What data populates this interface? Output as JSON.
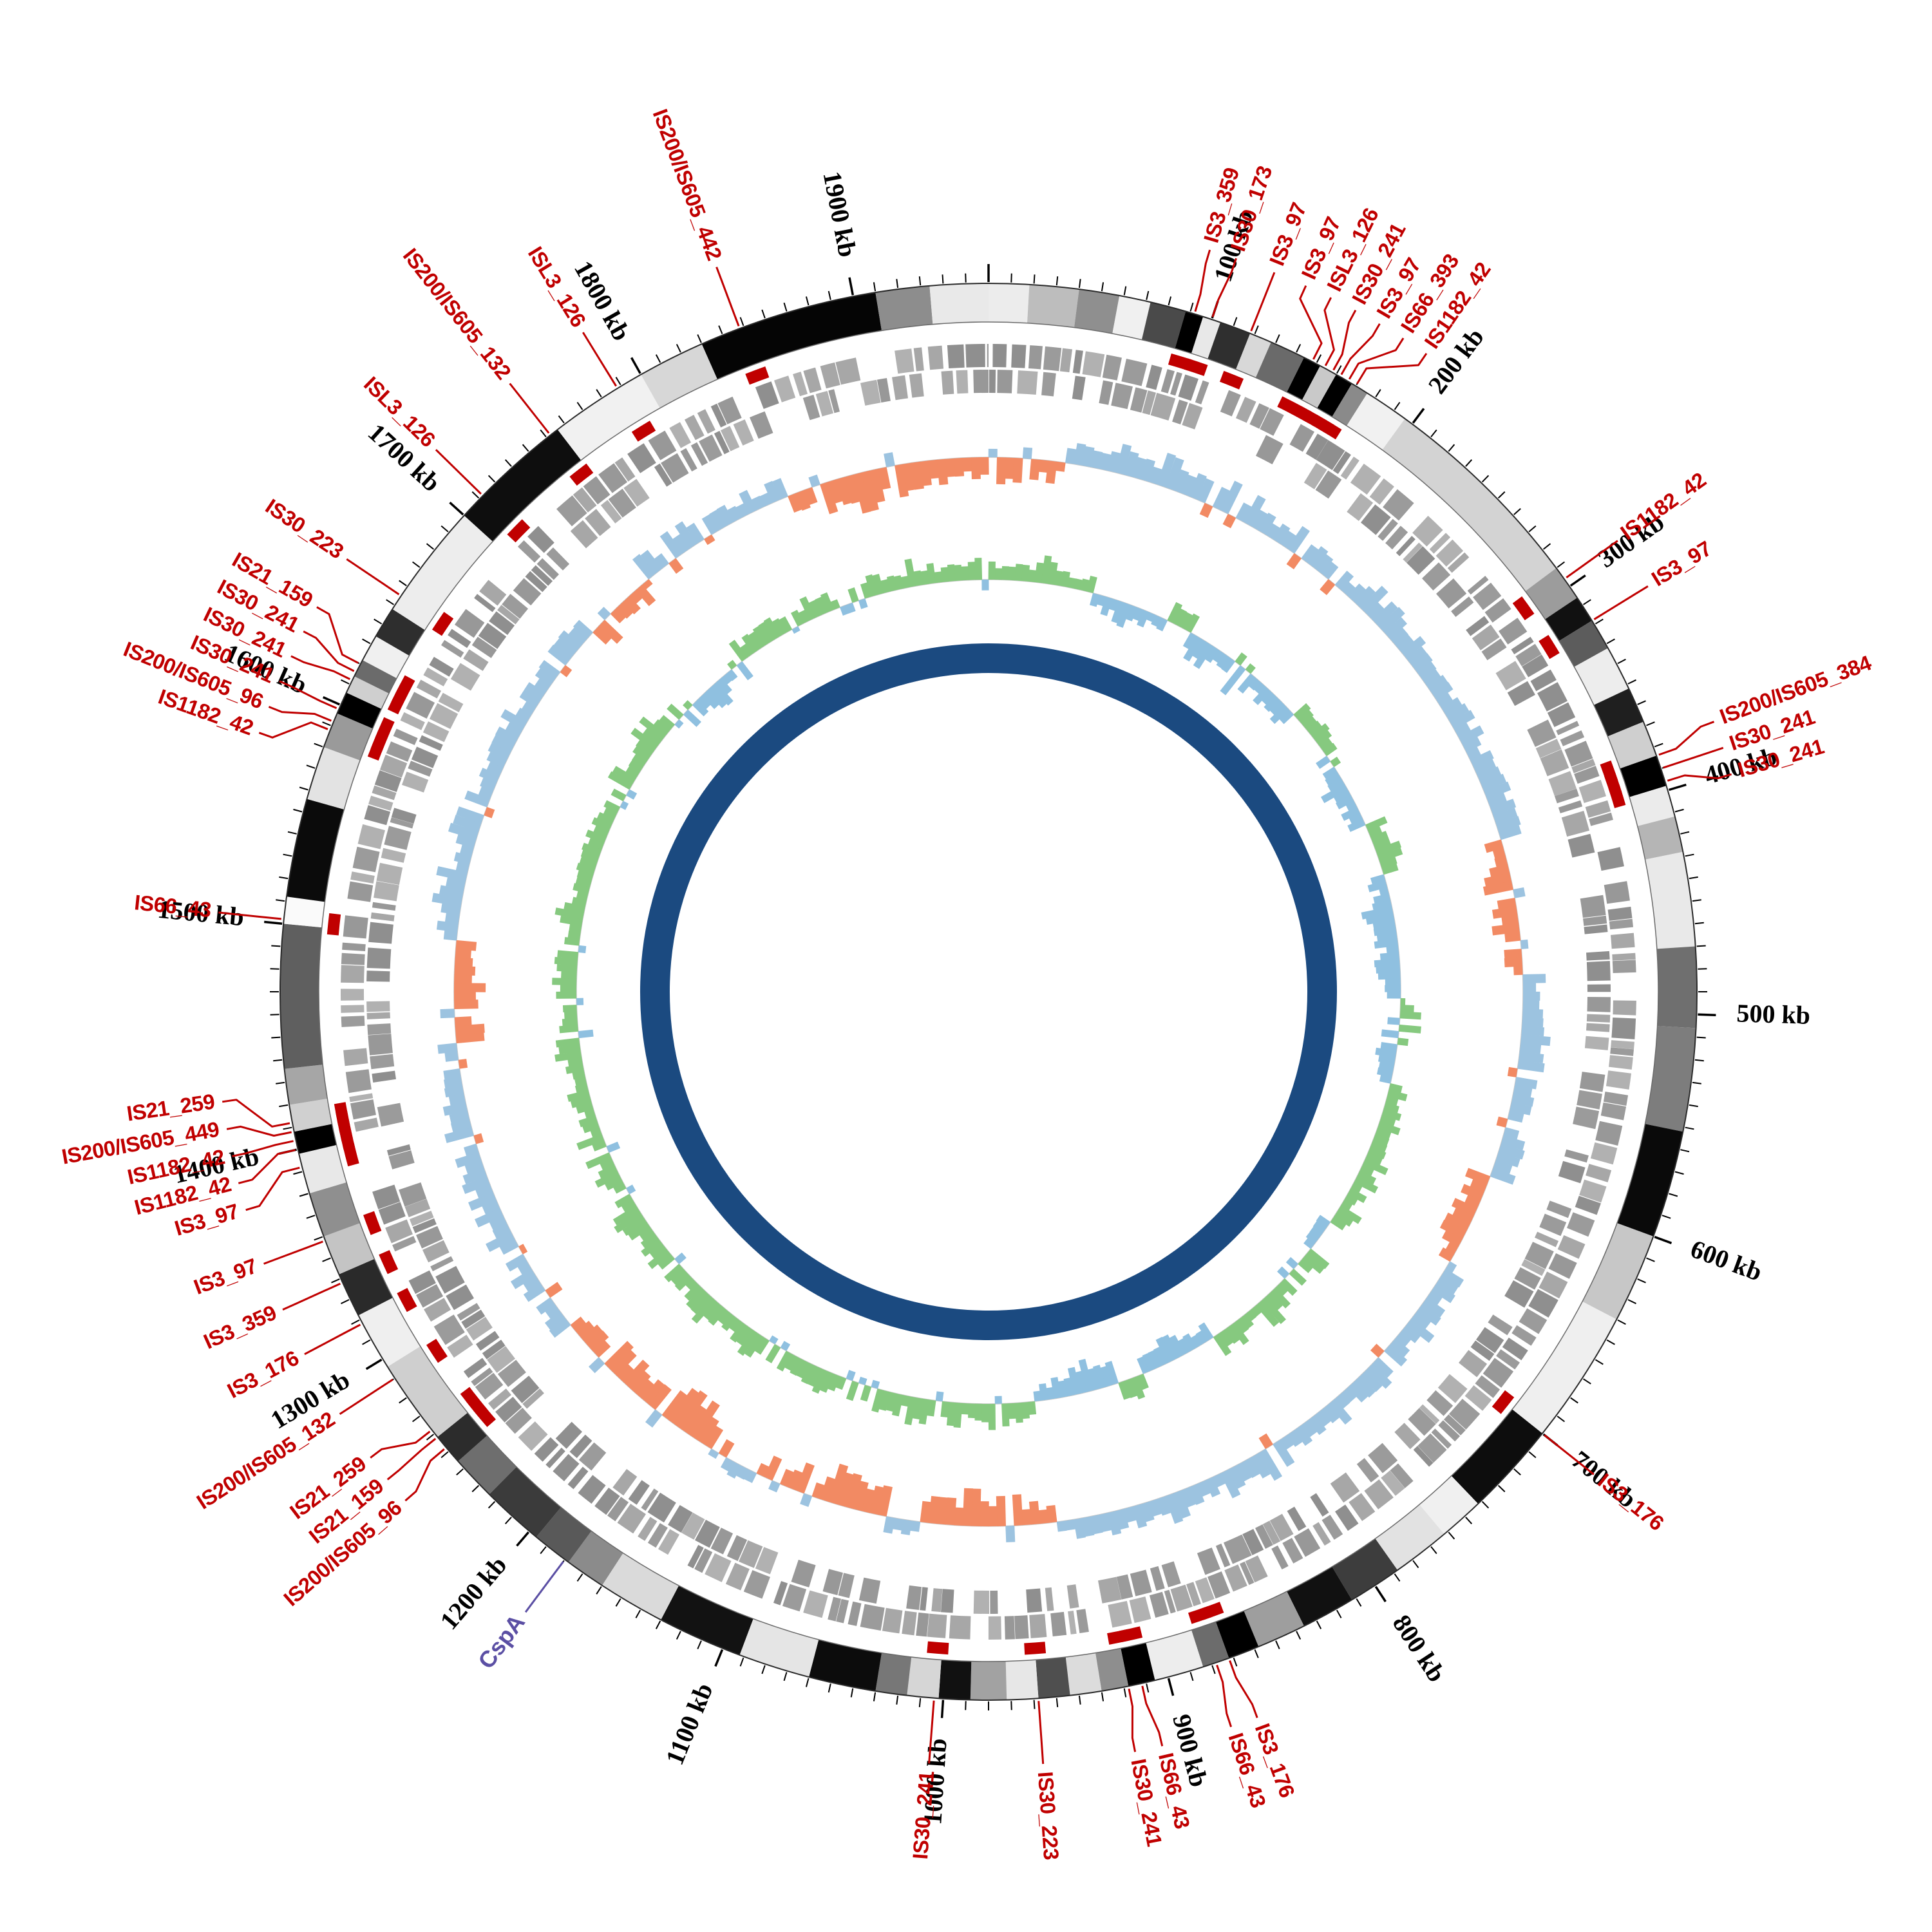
{
  "chart_data": {
    "type": "circular_genome_map",
    "title": "",
    "genome_length_kb": 1960,
    "background_color": "#ffffff",
    "center_ring_color": "#1b4a80",
    "is_annotation_color": "#c00000",
    "scale": {
      "minor_tick_interval_kb": 10,
      "major_tick_interval_kb": 100,
      "major_tick_labels": [
        "100 kb",
        "200 kb",
        "300 kb",
        "400 kb",
        "500 kb",
        "600 kb",
        "700 kb",
        "800 kb",
        "900 kb",
        "1000 kb",
        "1100 kb",
        "1200 kb",
        "1300 kb",
        "1400 kb",
        "1500 kb",
        "1600 kb",
        "1700 kb",
        "1800 kb",
        "1900 kb"
      ]
    },
    "karyotype_segments": [
      [
        0,
        18,
        "#ececec"
      ],
      [
        18,
        40,
        "#bdbdbd"
      ],
      [
        40,
        58,
        "#8f8f8f"
      ],
      [
        58,
        72,
        "#f0f0f0"
      ],
      [
        72,
        88,
        "#4a4a4a"
      ],
      [
        88,
        96,
        "#000000"
      ],
      [
        96,
        104,
        "#e8e8e8"
      ],
      [
        104,
        118,
        "#2f2f2f"
      ],
      [
        118,
        128,
        "#d8d8d8"
      ],
      [
        128,
        144,
        "#6a6a6a"
      ],
      [
        144,
        152,
        "#000000"
      ],
      [
        152,
        160,
        "#c9c9c9"
      ],
      [
        160,
        168,
        "#000000"
      ],
      [
        168,
        176,
        "#8a8a8a"
      ],
      [
        176,
        196,
        "#f1f1f1"
      ],
      [
        196,
        290,
        "#d3d3d3"
      ],
      [
        290,
        306,
        "#9c9c9c"
      ],
      [
        306,
        318,
        "#111111"
      ],
      [
        318,
        332,
        "#5c5c5c"
      ],
      [
        332,
        352,
        "#ededed"
      ],
      [
        352,
        368,
        "#1f1f1f"
      ],
      [
        368,
        384,
        "#cfcfcf"
      ],
      [
        384,
        398,
        "#000000"
      ],
      [
        398,
        412,
        "#ebebeb"
      ],
      [
        412,
        428,
        "#b5b5b5"
      ],
      [
        428,
        470,
        "#e9e9e9"
      ],
      [
        470,
        506,
        "#6f6f6f"
      ],
      [
        506,
        552,
        "#7d7d7d"
      ],
      [
        552,
        600,
        "#0a0a0a"
      ],
      [
        600,
        640,
        "#c7c7c7"
      ],
      [
        640,
        700,
        "#efefef"
      ],
      [
        700,
        742,
        "#0d0d0d"
      ],
      [
        742,
        762,
        "#f0f0f0"
      ],
      [
        762,
        788,
        "#e2e2e2"
      ],
      [
        788,
        812,
        "#3d3d3d"
      ],
      [
        812,
        836,
        "#111111"
      ],
      [
        836,
        858,
        "#9e9e9e"
      ],
      [
        858,
        872,
        "#000000"
      ],
      [
        872,
        884,
        "#6c6c6c"
      ],
      [
        884,
        906,
        "#ededed"
      ],
      [
        906,
        918,
        "#000000"
      ],
      [
        918,
        930,
        "#8e8e8e"
      ],
      [
        930,
        944,
        "#dcdcdc"
      ],
      [
        944,
        958,
        "#4f4f4f"
      ],
      [
        958,
        972,
        "#e7e7e7"
      ],
      [
        972,
        988,
        "#a2a2a2"
      ],
      [
        988,
        1002,
        "#111111"
      ],
      [
        1002,
        1016,
        "#d6d6d6"
      ],
      [
        1016,
        1030,
        "#777777"
      ],
      [
        1030,
        1060,
        "#0c0c0c"
      ],
      [
        1060,
        1092,
        "#e5e5e5"
      ],
      [
        1092,
        1130,
        "#121212"
      ],
      [
        1130,
        1160,
        "#dadada"
      ],
      [
        1160,
        1178,
        "#8b8b8b"
      ],
      [
        1178,
        1196,
        "#595959"
      ],
      [
        1196,
        1224,
        "#3b3b3b"
      ],
      [
        1224,
        1244,
        "#6e6e6e"
      ],
      [
        1244,
        1258,
        "#2c2c2c"
      ],
      [
        1258,
        1296,
        "#cfcfcf"
      ],
      [
        1296,
        1322,
        "#efefef"
      ],
      [
        1322,
        1342,
        "#2a2a2a"
      ],
      [
        1342,
        1360,
        "#c4c4c4"
      ],
      [
        1360,
        1380,
        "#8f8f8f"
      ],
      [
        1380,
        1398,
        "#e8e8e8"
      ],
      [
        1398,
        1408,
        "#000000"
      ],
      [
        1408,
        1420,
        "#d0d0d0"
      ],
      [
        1420,
        1436,
        "#a6a6a6"
      ],
      [
        1436,
        1500,
        "#5f5f5f"
      ],
      [
        1500,
        1512,
        "#fafafa"
      ],
      [
        1512,
        1556,
        "#0b0b0b"
      ],
      [
        1556,
        1580,
        "#e3e3e3"
      ],
      [
        1580,
        1596,
        "#9a9a9a"
      ],
      [
        1596,
        1606,
        "#000000"
      ],
      [
        1606,
        1614,
        "#cfcfcf"
      ],
      [
        1614,
        1622,
        "#6b6b6b"
      ],
      [
        1622,
        1634,
        "#f0f0f0"
      ],
      [
        1634,
        1648,
        "#2e2e2e"
      ],
      [
        1648,
        1700,
        "#ededed"
      ],
      [
        1700,
        1756,
        "#0e0e0e"
      ],
      [
        1756,
        1800,
        "#f1f1f1"
      ],
      [
        1800,
        1830,
        "#d7d7d7"
      ],
      [
        1830,
        1910,
        "#050505"
      ],
      [
        1910,
        1934,
        "#8d8d8d"
      ],
      [
        1934,
        1960,
        "#e9e9e9"
      ]
    ],
    "gene_track": {
      "color_palette": [
        "#9b9b9b",
        "#a7a7a7",
        "#8f8f8f",
        "#b1b1b1",
        "#989898"
      ],
      "seed": 11
    },
    "gc_content_track": {
      "positive_color": "#9cc3e0",
      "negative_color": "#f28a63",
      "interval_kb": 20,
      "seed": 23,
      "values": [
        -0.55,
        -0.4,
        0.35,
        0.5,
        0.42,
        0.58,
        0.46,
        0.62,
        0.4,
        0.52,
        0.44,
        0.36,
        0.55,
        0.48,
        0.6,
        0.42,
        0.5,
        0.38,
        0.56,
        0.44,
        -0.35,
        -0.58,
        -0.48,
        -0.3,
        0.4,
        0.52,
        0.44,
        0.36,
        0.5,
        0.42,
        -0.45,
        -0.55,
        -0.35,
        0.46,
        0.54,
        0.4,
        0.58,
        0.44,
        0.5,
        0.38,
        0.54,
        0.46,
        0.36,
        0.52,
        0.42,
        0.48,
        0.34,
        -0.42,
        -0.56,
        -0.62,
        -0.46,
        0.32,
        -0.5,
        -0.66,
        -0.52,
        -0.4,
        0.34,
        -0.46,
        -0.7,
        -0.6,
        -0.52,
        -0.58,
        -0.42,
        0.4,
        0.52,
        0.36,
        0.46,
        0.56,
        0.42,
        0.5,
        0.44,
        0.36,
        -0.5,
        -0.62,
        -0.42,
        0.44,
        0.52,
        0.36,
        0.56,
        0.42,
        0.5,
        0.46,
        0.32,
        0.5,
        0.4,
        -0.46,
        -0.36,
        0.42,
        0.46,
        0.32,
        0.4,
        0.36,
        -0.52,
        -0.66,
        -0.72,
        -0.62,
        -0.56,
        -0.46
      ]
    },
    "gc_skew_track": {
      "positive_color": "#86c97f",
      "negative_color": "#8fc0e0",
      "interval_kb": 20,
      "seed": 37,
      "values": [
        0.45,
        0.38,
        0.52,
        0.3,
        -0.35,
        -0.48,
        -0.3,
        0.42,
        -0.55,
        -0.4,
        -0.62,
        -0.35,
        -0.5,
        0.36,
        0.48,
        -0.42,
        -0.58,
        -0.36,
        0.4,
        0.52,
        -0.34,
        -0.6,
        -0.44,
        -0.52,
        -0.38,
        0.46,
        -0.4,
        -0.3,
        0.44,
        0.56,
        0.38,
        0.5,
        0.34,
        0.46,
        -0.36,
        0.52,
        0.4,
        0.58,
        0.36,
        0.48,
        -0.38,
        -0.52,
        -0.34,
        0.42,
        -0.46,
        -0.6,
        -0.42,
        0.38,
        0.5,
        0.34,
        0.46,
        0.56,
        0.4,
        0.52,
        0.36,
        0.48,
        0.42,
        0.34,
        0.54,
        0.44,
        0.58,
        0.38,
        0.5,
        0.42,
        0.56,
        0.34,
        0.46,
        0.52,
        0.38,
        0.48,
        0.4,
        0.54,
        0.36,
        0.5,
        0.44,
        0.34,
        0.52,
        0.42,
        0.56,
        0.38,
        0.46,
        0.5,
        0.36,
        0.54,
        0.4,
        -0.36,
        -0.5,
        -0.34,
        0.44,
        0.52,
        0.38,
        0.48,
        0.34,
        0.5,
        0.42,
        0.54,
        0.4,
        0.46
      ]
    },
    "is_annotations": [
      {
        "label": "IS3_359",
        "kb": 92
      },
      {
        "label": "IS30_173",
        "kb": 100
      },
      {
        "label": "IS3_97",
        "kb": 118
      },
      {
        "label": "IS3_97",
        "kb": 148
      },
      {
        "label": "ISL3_126",
        "kb": 154
      },
      {
        "label": "IS30_241",
        "kb": 158
      },
      {
        "label": "IS3_97",
        "kb": 162
      },
      {
        "label": "IS66_393",
        "kb": 166
      },
      {
        "label": "IS1182_42",
        "kb": 170
      },
      {
        "label": "IS1182_42",
        "kb": 296
      },
      {
        "label": "IS3_97",
        "kb": 318
      },
      {
        "label": "IS200/IS605_384",
        "kb": 384
      },
      {
        "label": "IS30_241",
        "kb": 390
      },
      {
        "label": "IS30_241",
        "kb": 396
      },
      {
        "label": "IS3_176",
        "kb": 700
      },
      {
        "label": "IS3_176",
        "kb": 872
      },
      {
        "label": "IS66_43",
        "kb": 878
      },
      {
        "label": "IS66_43",
        "kb": 912
      },
      {
        "label": "IS30_241",
        "kb": 918
      },
      {
        "label": "IS30_223",
        "kb": 958
      },
      {
        "label": "IS30_241",
        "kb": 1004
      },
      {
        "label": "IS200/IS605_96",
        "kb": 1252
      },
      {
        "label": "IS21_159",
        "kb": 1258
      },
      {
        "label": "IS21_259",
        "kb": 1262
      },
      {
        "label": "IS200/IS605_132",
        "kb": 1290
      },
      {
        "label": "IS3_176",
        "kb": 1318
      },
      {
        "label": "IS3_359",
        "kb": 1338
      },
      {
        "label": "IS3_97",
        "kb": 1358
      },
      {
        "label": "IS3_97",
        "kb": 1392
      },
      {
        "label": "IS1182_42",
        "kb": 1400
      },
      {
        "label": "IS1182_42",
        "kb": 1404
      },
      {
        "label": "IS200/IS605_449",
        "kb": 1408
      },
      {
        "label": "IS21_259",
        "kb": 1412
      },
      {
        "label": "IS66_43",
        "kb": 1502
      },
      {
        "label": "IS1182_42",
        "kb": 1588
      },
      {
        "label": "IS200/IS605_96",
        "kb": 1592
      },
      {
        "label": "IS30_241",
        "kb": 1598
      },
      {
        "label": "IS30_241",
        "kb": 1612
      },
      {
        "label": "IS30_241",
        "kb": 1616
      },
      {
        "label": "IS21_159",
        "kb": 1620
      },
      {
        "label": "IS30_223",
        "kb": 1655
      },
      {
        "label": "ISL3_126",
        "kb": 1712
      },
      {
        "label": "IS200/IS605_132",
        "kb": 1752
      },
      {
        "label": "ISL3_126",
        "kb": 1788
      },
      {
        "label": "IS200/IS605_442",
        "kb": 1848
      }
    ],
    "gene_annotations": [
      {
        "label": "CspA",
        "kb": 1180,
        "color": "#5b4fa4"
      }
    ]
  }
}
